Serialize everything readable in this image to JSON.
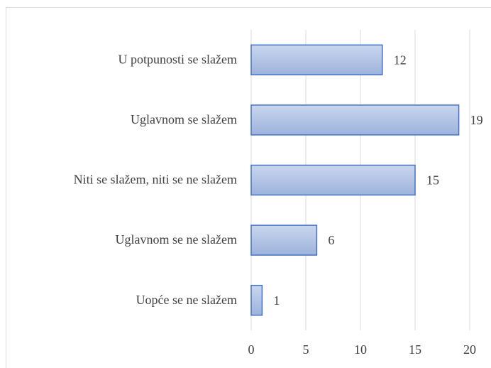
{
  "chart_data": {
    "type": "bar",
    "orientation": "horizontal",
    "categories": [
      "U potpunosti se slažem",
      "Uglavnom se slažem",
      "Niti se slažem, niti se ne slažem",
      "Uglavnom se ne slažem",
      "Uopće se ne slažem"
    ],
    "values": [
      12,
      19,
      15,
      6,
      1
    ],
    "color": "#9db3dc",
    "edge_color": "#4472c4",
    "xlim": [
      0,
      20
    ],
    "xticks": [
      0,
      5,
      10,
      15,
      20
    ],
    "grid": true
  }
}
